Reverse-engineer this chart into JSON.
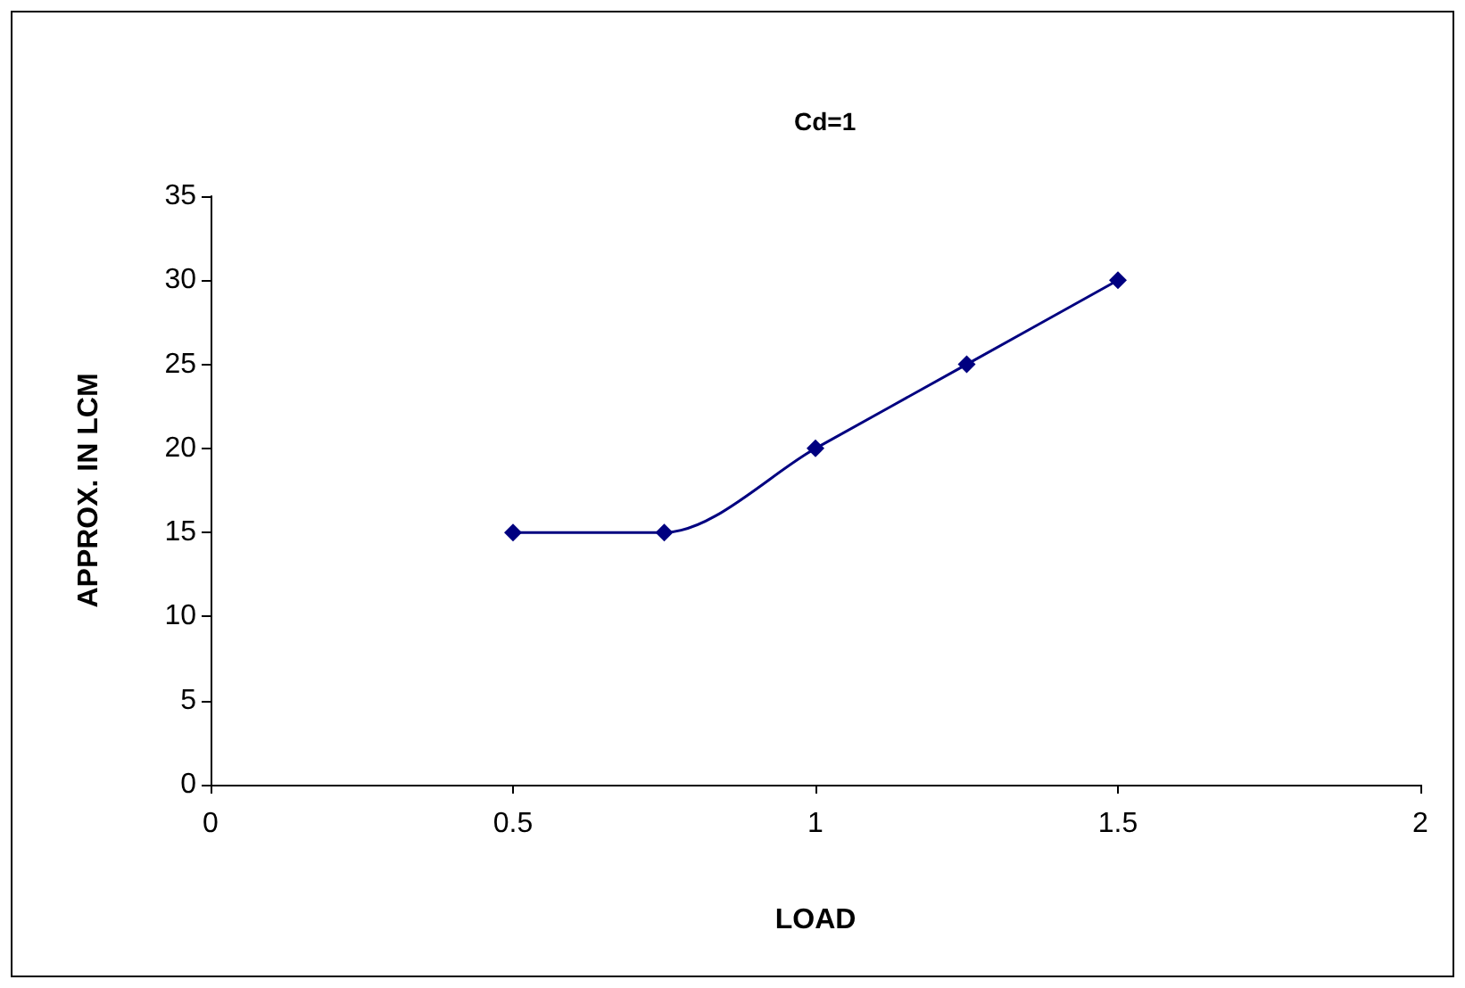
{
  "chart_data": {
    "type": "line",
    "title": "Cd=1",
    "xlabel": "LOAD",
    "ylabel": "APPROX. IN LCM",
    "x": [
      0.5,
      0.75,
      1,
      1.25,
      1.5
    ],
    "series": [
      {
        "color": "#000080",
        "values": [
          15,
          15,
          20,
          25,
          30
        ]
      }
    ],
    "xlim": [
      0,
      2
    ],
    "xticks": [
      0,
      0.5,
      1,
      1.5,
      2
    ],
    "ylim": [
      0,
      35
    ],
    "yticks": [
      0,
      5,
      10,
      15,
      20,
      25,
      30,
      35
    ],
    "grid": false,
    "marker": "diamond",
    "line_style": "solid"
  }
}
